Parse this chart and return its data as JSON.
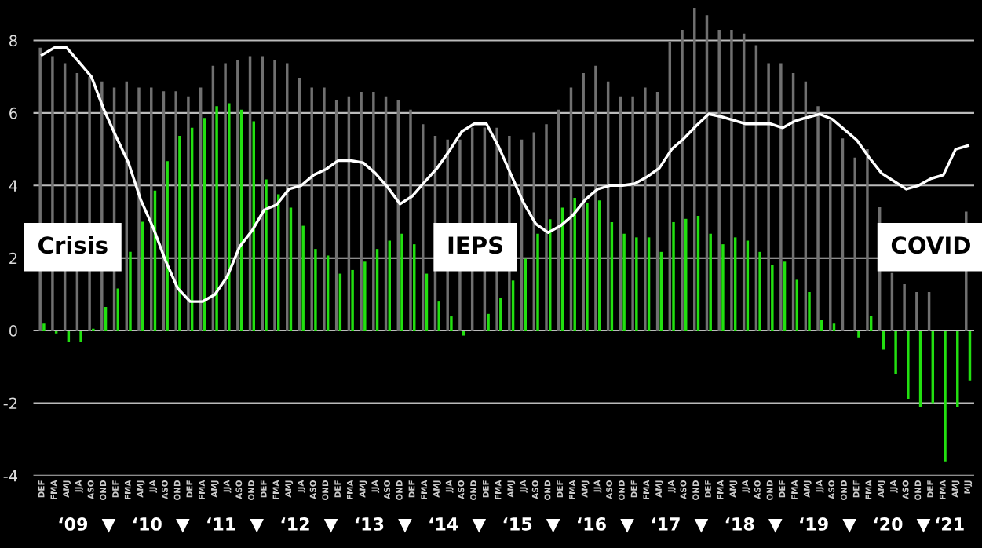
{
  "chart_data": {
    "type": "bar",
    "categories": [
      "DEF",
      "FMA",
      "AMJ",
      "JJA",
      "ASO",
      "OND",
      "DEF",
      "FMA",
      "AMJ",
      "JJA",
      "ASO",
      "OND",
      "DEF",
      "FMA",
      "AMJ",
      "JJA",
      "ASO",
      "OND",
      "DEF",
      "FMA",
      "AMJ",
      "JJA",
      "ASO",
      "OND",
      "DEF",
      "FMA",
      "AMJ",
      "JJA",
      "ASO",
      "OND",
      "DEF",
      "FMA",
      "AMJ",
      "JJA",
      "ASO",
      "OND",
      "DEF",
      "FMA",
      "AMJ",
      "JJA",
      "ASO",
      "OND",
      "DEF",
      "FMA",
      "AMJ",
      "JJA",
      "ASO",
      "OND",
      "DEF",
      "FMA",
      "AMJ",
      "JJA",
      "ASO",
      "OND",
      "DEF",
      "FMA",
      "AMJ",
      "JJA",
      "ASO",
      "OND",
      "DEF",
      "FMA",
      "AMJ",
      "JJA",
      "ASO",
      "OND",
      "DEF",
      "FMA",
      "AMJ",
      "JJA",
      "ASO",
      "OND",
      "DEF",
      "FMA",
      "AMJ",
      "MJJ"
    ],
    "series": [
      {
        "color": "#707070",
        "values": [
          7.8,
          7.57,
          7.37,
          7.1,
          7.0,
          6.87,
          6.7,
          6.87,
          6.7,
          6.7,
          6.6,
          6.6,
          6.46,
          6.7,
          7.3,
          7.37,
          7.47,
          7.57,
          7.57,
          7.47,
          7.37,
          6.97,
          6.7,
          6.7,
          6.36,
          6.46,
          6.58,
          6.58,
          6.46,
          6.36,
          6.09,
          5.69,
          5.37,
          5.27,
          5.27,
          5.6,
          5.6,
          5.59,
          5.37,
          5.27,
          5.47,
          5.69,
          6.09,
          6.7,
          7.1,
          7.3,
          6.87,
          6.46,
          6.46,
          6.7,
          6.58,
          7.97,
          8.29,
          8.9,
          8.7,
          8.29,
          8.29,
          8.19,
          7.87,
          7.37,
          7.37,
          7.1,
          6.87,
          6.19,
          5.8,
          5.3,
          4.77,
          5.0,
          3.4,
          1.59,
          1.28,
          1.06,
          1.06,
          null,
          null,
          3.28
        ]
      },
      {
        "color": "#22e010",
        "values": [
          0.19,
          -0.08,
          -0.3,
          -0.3,
          0.05,
          0.65,
          1.16,
          2.17,
          3.0,
          3.86,
          4.67,
          5.37,
          5.59,
          5.86,
          6.19,
          6.27,
          6.09,
          5.77,
          4.17,
          3.76,
          3.39,
          2.89,
          2.25,
          2.07,
          1.57,
          1.67,
          1.9,
          2.25,
          2.48,
          2.67,
          2.38,
          1.57,
          0.8,
          0.39,
          -0.14,
          0,
          0.46,
          0.89,
          1.38,
          1.98,
          2.67,
          3.07,
          3.39,
          3.66,
          3.52,
          3.59,
          2.99,
          2.67,
          2.57,
          2.57,
          2.17,
          2.99,
          3.08,
          3.16,
          2.67,
          2.38,
          2.57,
          2.48,
          2.17,
          1.8,
          1.9,
          1.4,
          1.06,
          0.29,
          0.19,
          0,
          -0.19,
          0.39,
          -0.53,
          -1.2,
          -1.88,
          -2.12,
          -2.0,
          -3.61,
          -2.12,
          -1.38
        ]
      },
      {
        "type": "line",
        "color": "#ffffff",
        "values": [
          7.6,
          7.8,
          7.8,
          7.4,
          7.0,
          6.1,
          5.35,
          4.63,
          3.6,
          2.84,
          1.93,
          1.16,
          0.8,
          0.8,
          0.99,
          1.49,
          2.31,
          2.75,
          3.33,
          3.47,
          3.9,
          4.0,
          4.29,
          4.45,
          4.69,
          4.69,
          4.63,
          4.34,
          3.95,
          3.49,
          3.71,
          4.1,
          4.48,
          4.96,
          5.49,
          5.7,
          5.7,
          5.06,
          4.29,
          3.52,
          2.94,
          2.7,
          2.89,
          3.18,
          3.61,
          3.9,
          4.0,
          4.0,
          4.05,
          4.24,
          4.48,
          5.0,
          5.3,
          5.65,
          5.97,
          5.9,
          5.8,
          5.7,
          5.7,
          5.7,
          5.59,
          5.78,
          5.88,
          5.97,
          5.83,
          5.54,
          5.25,
          4.77,
          4.34,
          4.12,
          3.9,
          4.0,
          4.19,
          4.29,
          5.0,
          5.1
        ]
      }
    ],
    "ylim": [
      -4,
      9.1
    ],
    "yticks": [
      -4,
      -2,
      0,
      2,
      4,
      6,
      8
    ],
    "grid": "y",
    "legend": false,
    "annotations": [
      "Crisis",
      "IEPS",
      "COVID",
      "‘09",
      "‘10",
      "‘11",
      "‘12",
      "‘13",
      "‘14",
      "‘15",
      "‘16",
      "‘17",
      "‘18",
      "‘19",
      "‘20",
      "‘21"
    ]
  }
}
